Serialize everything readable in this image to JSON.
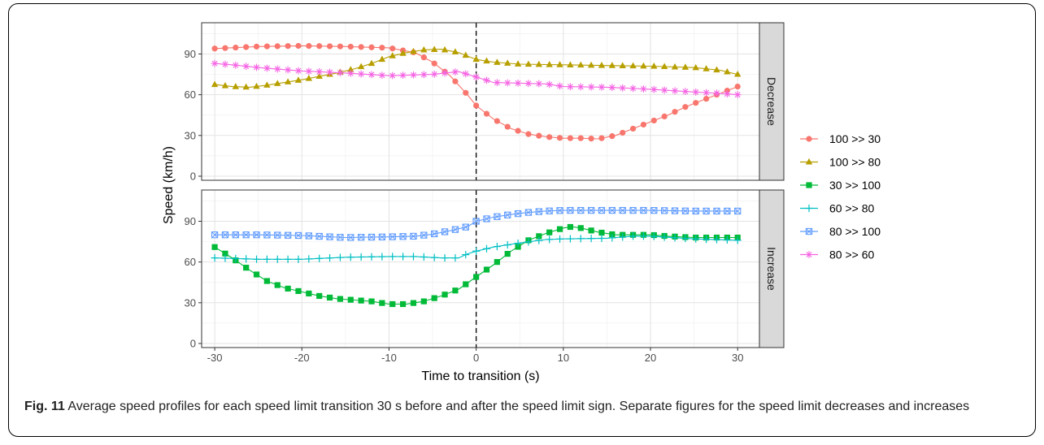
{
  "caption": {
    "label": "Fig. 11",
    "text": "Average speed profiles for each speed limit transition 30 s before and after the speed limit sign. Separate figures for the speed limit decreases and increases"
  },
  "chart_data": {
    "type": "line",
    "xlabel": "Time to transition (s)",
    "ylabel": "Speed (km/h)",
    "xlim": [
      -31.5,
      32.5
    ],
    "ylim": [
      -3,
      113
    ],
    "xticks": [
      -30,
      -20,
      -10,
      0,
      10,
      20,
      30
    ],
    "yticks": [
      0,
      30,
      60,
      90
    ],
    "grid": true,
    "vline": {
      "x": 0,
      "style": "dashed"
    },
    "legend_position": "right",
    "panels": [
      {
        "strip": "Decrease",
        "series": [
          {
            "name": "100 >> 30",
            "color": "#F8766D",
            "marker": "circle",
            "points": [
              [
                -30,
                94
              ],
              [
                -25,
                95.5
              ],
              [
                -20,
                96
              ],
              [
                -15,
                95.5
              ],
              [
                -10,
                94.5
              ],
              [
                -7,
                91
              ],
              [
                -5,
                84
              ],
              [
                -3,
                74
              ],
              [
                -1,
                60
              ],
              [
                0,
                52
              ],
              [
                2,
                42
              ],
              [
                4,
                35
              ],
              [
                6,
                31
              ],
              [
                8,
                29
              ],
              [
                10,
                28
              ],
              [
                12,
                28
              ],
              [
                14,
                27.5
              ],
              [
                16,
                30
              ],
              [
                18,
                35
              ],
              [
                20,
                40
              ],
              [
                22,
                45
              ],
              [
                24,
                51
              ],
              [
                26,
                56
              ],
              [
                28,
                61
              ],
              [
                30,
                66
              ]
            ]
          },
          {
            "name": "100 >> 80",
            "color": "#B79F00",
            "marker": "triangle",
            "points": [
              [
                -30,
                67.5
              ],
              [
                -28,
                66
              ],
              [
                -26,
                65.5
              ],
              [
                -24,
                67
              ],
              [
                -22,
                69
              ],
              [
                -20,
                71
              ],
              [
                -18,
                73.5
              ],
              [
                -16,
                76
              ],
              [
                -14,
                79
              ],
              [
                -12,
                83
              ],
              [
                -10,
                88
              ],
              [
                -8,
                91
              ],
              [
                -6,
                93
              ],
              [
                -4,
                93.5
              ],
              [
                -2,
                91
              ],
              [
                0,
                86
              ],
              [
                2,
                84
              ],
              [
                5,
                82.5
              ],
              [
                10,
                82
              ],
              [
                15,
                81.5
              ],
              [
                20,
                81
              ],
              [
                25,
                80
              ],
              [
                28,
                78
              ],
              [
                30,
                75
              ]
            ]
          },
          {
            "name": "80 >> 60",
            "color": "#F564E3",
            "marker": "star",
            "points": [
              [
                -30,
                83
              ],
              [
                -28,
                82
              ],
              [
                -25,
                80
              ],
              [
                -20,
                77.5
              ],
              [
                -15,
                76
              ],
              [
                -10,
                74
              ],
              [
                -5,
                75
              ],
              [
                -2,
                77
              ],
              [
                0,
                73
              ],
              [
                2,
                69
              ],
              [
                5,
                68.5
              ],
              [
                8,
                68
              ],
              [
                10,
                66
              ],
              [
                15,
                65.5
              ],
              [
                20,
                64
              ],
              [
                25,
                62
              ],
              [
                28,
                61
              ],
              [
                30,
                60
              ]
            ]
          }
        ]
      },
      {
        "strip": "Increase",
        "series": [
          {
            "name": "30 >> 100",
            "color": "#00BA38",
            "marker": "square",
            "points": [
              [
                -30,
                71
              ],
              [
                -28,
                63
              ],
              [
                -26,
                54
              ],
              [
                -24,
                46
              ],
              [
                -22,
                41
              ],
              [
                -20,
                38
              ],
              [
                -18,
                35
              ],
              [
                -16,
                33
              ],
              [
                -14,
                32
              ],
              [
                -12,
                31
              ],
              [
                -10,
                29
              ],
              [
                -8,
                29
              ],
              [
                -6,
                31
              ],
              [
                -4,
                35
              ],
              [
                -2,
                40
              ],
              [
                0,
                49
              ],
              [
                2,
                58
              ],
              [
                4,
                68
              ],
              [
                6,
                76
              ],
              [
                8,
                81
              ],
              [
                10,
                85
              ],
              [
                11,
                86
              ],
              [
                12,
                85
              ],
              [
                14,
                82
              ],
              [
                16,
                80
              ],
              [
                18,
                80
              ],
              [
                20,
                80
              ],
              [
                22,
                79
              ],
              [
                25,
                78
              ],
              [
                28,
                78
              ],
              [
                30,
                78
              ]
            ]
          },
          {
            "name": "60 >> 80",
            "color": "#00BFC4",
            "marker": "plus",
            "points": [
              [
                -30,
                63
              ],
              [
                -25,
                62
              ],
              [
                -20,
                62
              ],
              [
                -15,
                63.5
              ],
              [
                -10,
                64
              ],
              [
                -7,
                64
              ],
              [
                -4,
                63
              ],
              [
                -2,
                63
              ],
              [
                -1,
                66
              ],
              [
                0,
                68
              ],
              [
                2,
                71
              ],
              [
                5,
                74
              ],
              [
                8,
                76.5
              ],
              [
                10,
                77
              ],
              [
                15,
                77.5
              ],
              [
                18,
                79
              ],
              [
                20,
                79
              ],
              [
                25,
                77
              ],
              [
                30,
                76
              ]
            ]
          },
          {
            "name": "80 >> 100",
            "color": "#619CFF",
            "marker": "boxx",
            "points": [
              [
                -30,
                80
              ],
              [
                -25,
                80
              ],
              [
                -20,
                79.5
              ],
              [
                -15,
                78
              ],
              [
                -10,
                78.5
              ],
              [
                -7,
                79
              ],
              [
                -5,
                80.5
              ],
              [
                -3,
                83
              ],
              [
                -1,
                86
              ],
              [
                0,
                90
              ],
              [
                2,
                93
              ],
              [
                4,
                95
              ],
              [
                6,
                96.5
              ],
              [
                8,
                97.5
              ],
              [
                10,
                98
              ],
              [
                15,
                98
              ],
              [
                20,
                98
              ],
              [
                25,
                97.5
              ],
              [
                30,
                97.5
              ]
            ]
          }
        ]
      }
    ],
    "legend": [
      {
        "name": "100 >> 30",
        "color": "#F8766D",
        "marker": "circle"
      },
      {
        "name": "100 >> 80",
        "color": "#B79F00",
        "marker": "triangle"
      },
      {
        "name": "30 >> 100",
        "color": "#00BA38",
        "marker": "square"
      },
      {
        "name": "60 >> 80",
        "color": "#00BFC4",
        "marker": "plus"
      },
      {
        "name": "80 >> 100",
        "color": "#619CFF",
        "marker": "boxx"
      },
      {
        "name": "80 >> 60",
        "color": "#F564E3",
        "marker": "star"
      }
    ]
  }
}
